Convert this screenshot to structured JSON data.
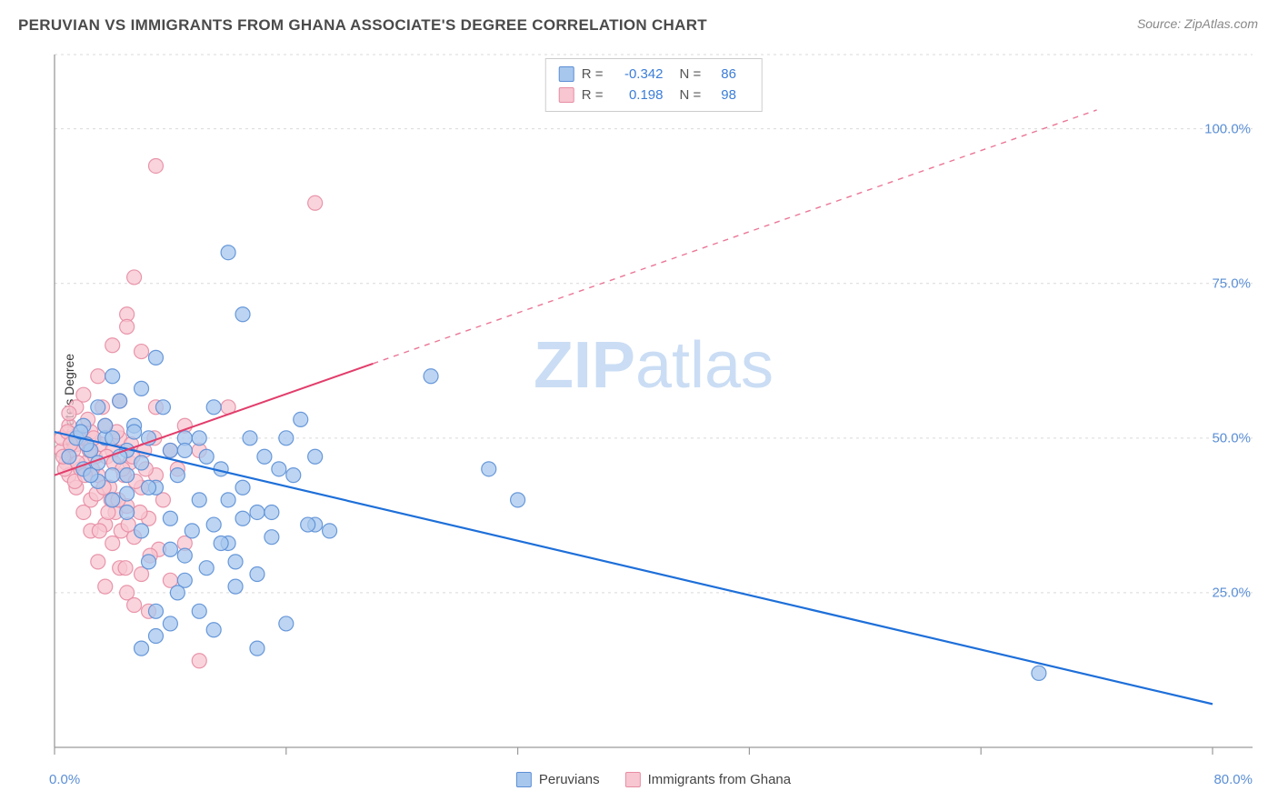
{
  "title": "PERUVIAN VS IMMIGRANTS FROM GHANA ASSOCIATE'S DEGREE CORRELATION CHART",
  "source": "Source: ZipAtlas.com",
  "y_axis_label": "Associate's Degree",
  "watermark": {
    "left": "ZIP",
    "right": "atlas"
  },
  "chart": {
    "type": "scatter-correlation",
    "background_color": "#ffffff",
    "grid_color": "#d9d9d9",
    "axis_color": "#9a9a9a",
    "xlim": [
      0,
      80
    ],
    "ylim": [
      0,
      112
    ],
    "x_ticks": [
      0,
      16,
      32,
      48,
      64,
      80
    ],
    "x_tick_labels_shown": {
      "0": "0.0%",
      "80": "80.0%"
    },
    "y_gridlines": [
      25,
      50,
      75,
      100,
      112
    ],
    "y_tick_labels": {
      "25": "25.0%",
      "50": "50.0%",
      "75": "75.0%",
      "100": "100.0%"
    },
    "series": [
      {
        "name": "Peruvians",
        "color_fill": "#a7c7ed",
        "color_stroke": "#5b8fd6",
        "marker_opacity": 0.75,
        "marker_radius": 8,
        "regression": {
          "slope": -0.55,
          "intercept": 51,
          "color": "#1e6fd9",
          "width": 2.2,
          "x_end_solid": 80
        },
        "R": -0.342,
        "N": 86,
        "points": [
          [
            1,
            47
          ],
          [
            1.5,
            50
          ],
          [
            2,
            45
          ],
          [
            2,
            52
          ],
          [
            2.5,
            48
          ],
          [
            3,
            43
          ],
          [
            3,
            55
          ],
          [
            3.5,
            50
          ],
          [
            4,
            60
          ],
          [
            4,
            40
          ],
          [
            4.5,
            56
          ],
          [
            5,
            38
          ],
          [
            5,
            48
          ],
          [
            5.5,
            52
          ],
          [
            6,
            35
          ],
          [
            6,
            58
          ],
          [
            6.5,
            30
          ],
          [
            7,
            63
          ],
          [
            7,
            42
          ],
          [
            7.5,
            55
          ],
          [
            8,
            32
          ],
          [
            8,
            48
          ],
          [
            8.5,
            44
          ],
          [
            9,
            27
          ],
          [
            9,
            50
          ],
          [
            9.5,
            35
          ],
          [
            10,
            22
          ],
          [
            10,
            40
          ],
          [
            10.5,
            47
          ],
          [
            11,
            36
          ],
          [
            11,
            19
          ],
          [
            11.5,
            45
          ],
          [
            12,
            80
          ],
          [
            12,
            33
          ],
          [
            12.5,
            30
          ],
          [
            13,
            70
          ],
          [
            13,
            42
          ],
          [
            13.5,
            50
          ],
          [
            14,
            38
          ],
          [
            14,
            16
          ],
          [
            14.5,
            47
          ],
          [
            15,
            34
          ],
          [
            15.5,
            45
          ],
          [
            16,
            20
          ],
          [
            16,
            50
          ],
          [
            17,
            53
          ],
          [
            18,
            36
          ],
          [
            18,
            47
          ],
          [
            26,
            60
          ],
          [
            30,
            45
          ],
          [
            32,
            40
          ],
          [
            68,
            12
          ],
          [
            7,
            18
          ],
          [
            8,
            20
          ],
          [
            6,
            46
          ],
          [
            5,
            44
          ],
          [
            4,
            50
          ],
          [
            3,
            46
          ],
          [
            2.5,
            44
          ],
          [
            11,
            55
          ],
          [
            10,
            50
          ],
          [
            12,
            40
          ],
          [
            9,
            31
          ],
          [
            8.5,
            25
          ],
          [
            6.5,
            42
          ],
          [
            5.5,
            51
          ],
          [
            4.5,
            47
          ],
          [
            14,
            28
          ],
          [
            15,
            38
          ],
          [
            13,
            37
          ],
          [
            12.5,
            26
          ],
          [
            11.5,
            33
          ],
          [
            10.5,
            29
          ],
          [
            16.5,
            44
          ],
          [
            17.5,
            36
          ],
          [
            19,
            35
          ],
          [
            6,
            16
          ],
          [
            7,
            22
          ],
          [
            3.5,
            52
          ],
          [
            2.2,
            49
          ],
          [
            1.8,
            51
          ],
          [
            5,
            41
          ],
          [
            4,
            44
          ],
          [
            8,
            37
          ],
          [
            9,
            48
          ],
          [
            6.5,
            50
          ]
        ]
      },
      {
        "name": "Immigrants from Ghana",
        "color_fill": "#f7c6d0",
        "color_stroke": "#e78ca3",
        "marker_opacity": 0.75,
        "marker_radius": 8,
        "regression": {
          "slope": 0.82,
          "intercept": 44,
          "color": "#e23d6b",
          "width": 2,
          "x_end_solid": 22,
          "dash_after": true,
          "x_end_dash": 72
        },
        "R": 0.198,
        "N": 98,
        "points": [
          [
            0.5,
            48
          ],
          [
            0.5,
            50
          ],
          [
            0.8,
            46
          ],
          [
            1,
            52
          ],
          [
            1,
            44
          ],
          [
            1,
            47
          ],
          [
            1.2,
            50
          ],
          [
            1.5,
            42
          ],
          [
            1.5,
            55
          ],
          [
            1.5,
            49
          ],
          [
            1.8,
            45
          ],
          [
            2,
            50
          ],
          [
            2,
            38
          ],
          [
            2,
            57
          ],
          [
            2.2,
            46
          ],
          [
            2.5,
            40
          ],
          [
            2.5,
            51
          ],
          [
            2.5,
            35
          ],
          [
            2.8,
            47
          ],
          [
            3,
            44
          ],
          [
            3,
            60
          ],
          [
            3,
            30
          ],
          [
            3.2,
            49
          ],
          [
            3.5,
            52
          ],
          [
            3.5,
            36
          ],
          [
            3.5,
            26
          ],
          [
            3.8,
            42
          ],
          [
            4,
            48
          ],
          [
            4,
            33
          ],
          [
            4,
            65
          ],
          [
            4.2,
            38
          ],
          [
            4.5,
            50
          ],
          [
            4.5,
            29
          ],
          [
            4.5,
            56
          ],
          [
            4.8,
            44
          ],
          [
            5,
            39
          ],
          [
            5,
            25
          ],
          [
            5,
            70
          ],
          [
            5,
            68
          ],
          [
            5.2,
            46
          ],
          [
            5.5,
            34
          ],
          [
            5.5,
            23
          ],
          [
            5.5,
            76
          ],
          [
            6,
            42
          ],
          [
            6,
            28
          ],
          [
            6,
            64
          ],
          [
            6.2,
            48
          ],
          [
            6.5,
            37
          ],
          [
            6.5,
            22
          ],
          [
            7,
            44
          ],
          [
            7,
            94
          ],
          [
            7,
            55
          ],
          [
            7.2,
            32
          ],
          [
            7.5,
            40
          ],
          [
            8,
            48
          ],
          [
            8,
            27
          ],
          [
            8.5,
            45
          ],
          [
            9,
            52
          ],
          [
            9,
            33
          ],
          [
            10,
            48
          ],
          [
            10,
            14
          ],
          [
            12,
            55
          ],
          [
            18,
            88
          ],
          [
            1,
            54
          ],
          [
            1.3,
            48
          ],
          [
            1.7,
            50
          ],
          [
            0.7,
            45
          ],
          [
            0.9,
            51
          ],
          [
            2.3,
            53
          ],
          [
            2.6,
            45
          ],
          [
            2.9,
            41
          ],
          [
            3.3,
            55
          ],
          [
            3.6,
            47
          ],
          [
            3.9,
            40
          ],
          [
            4.3,
            51
          ],
          [
            4.6,
            35
          ],
          [
            4.9,
            29
          ],
          [
            5.3,
            49
          ],
          [
            5.6,
            43
          ],
          [
            5.9,
            38
          ],
          [
            6.3,
            45
          ],
          [
            6.6,
            31
          ],
          [
            6.9,
            50
          ],
          [
            1.4,
            43
          ],
          [
            1.6,
            46
          ],
          [
            1.1,
            49
          ],
          [
            0.6,
            47
          ],
          [
            2.1,
            44
          ],
          [
            2.4,
            48
          ],
          [
            2.7,
            50
          ],
          [
            3.1,
            35
          ],
          [
            3.4,
            42
          ],
          [
            3.7,
            38
          ],
          [
            4.1,
            46
          ],
          [
            4.4,
            40
          ],
          [
            4.7,
            45
          ],
          [
            5.1,
            36
          ],
          [
            5.4,
            47
          ]
        ]
      }
    ]
  },
  "stats_box": {
    "rows": [
      {
        "swatch": "blue",
        "R_label": "R =",
        "R": "-0.342",
        "N_label": "N =",
        "N": "86"
      },
      {
        "swatch": "pink",
        "R_label": "R =",
        "R": "0.198",
        "N_label": "N =",
        "N": "98"
      }
    ]
  },
  "bottom_legend": [
    {
      "swatch": "blue",
      "label": "Peruvians"
    },
    {
      "swatch": "pink",
      "label": "Immigrants from Ghana"
    }
  ]
}
